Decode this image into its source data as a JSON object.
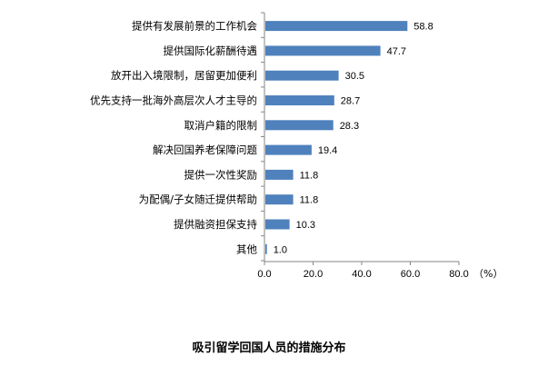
{
  "chart_data": {
    "type": "bar",
    "orientation": "horizontal",
    "title": "吸引留学回国人员的措施分布",
    "unit": "（%）",
    "categories": [
      "提供有发展前景的工作机会",
      "提供国际化薪酬待遇",
      "放开出入境限制，居留更加便利",
      "优先支持一批海外高层次人才主导的",
      "取消户籍的限制",
      "解决回国养老保障问题",
      "提供一次性奖励",
      "为配偶/子女随迁提供帮助",
      "提供融资担保支持",
      "其他"
    ],
    "values": [
      58.8,
      47.7,
      30.5,
      28.7,
      28.3,
      19.4,
      11.8,
      11.8,
      10.3,
      1.0
    ],
    "value_labels": [
      "58.8",
      "47.7",
      "30.5",
      "28.7",
      "28.3",
      "19.4",
      "11.8",
      "11.8",
      "10.3",
      "1.0"
    ],
    "xlim": [
      0,
      80
    ],
    "x_ticks": [
      0,
      20,
      40,
      60,
      80
    ],
    "x_tick_labels": [
      "0.0",
      "20.0",
      "40.0",
      "60.0",
      "80.0"
    ],
    "bar_color": "#4F81BD",
    "grid": false,
    "legend": "none"
  }
}
